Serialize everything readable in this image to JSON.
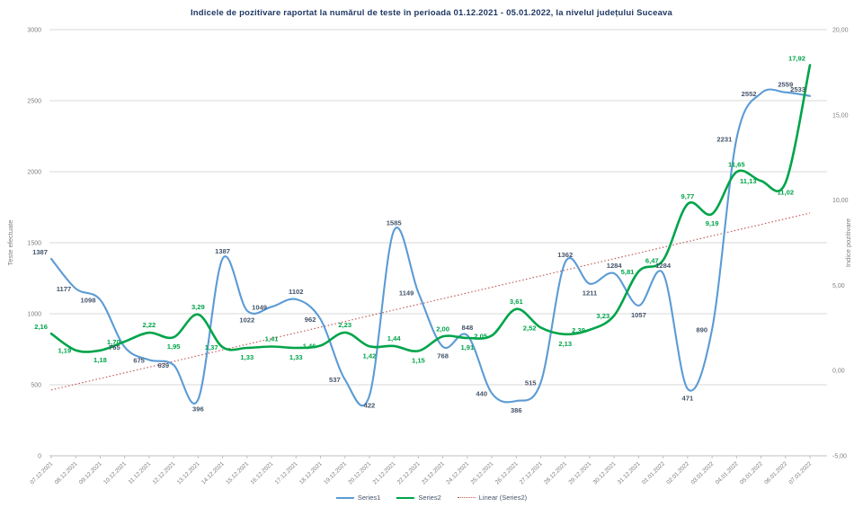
{
  "title": "Indicele de pozitivare raportat la numărul de teste în perioada 01.12.2021 - 05.01.2022, la nivelul județului Suceava",
  "legend": [
    "Series1",
    "Series2",
    "Linear (Series2)"
  ],
  "colors": {
    "title": "#1F3864",
    "series1_line": "#5B9BD5",
    "series1_label": "#44546A",
    "series2_line": "#00A44A",
    "series2_label": "#00A44A",
    "trendline": "#C0504D",
    "gridline": "#D9D9D9",
    "axis_text": "#808080",
    "legend_text": "#44546A"
  },
  "chart_data": {
    "type": "line",
    "title": "Indicele de pozitivare raportat la numărul de teste în perioada 01.12.2021 - 05.01.2022, la nivelul județului Suceava",
    "categories": [
      "07.12.2021",
      "08.12.2021",
      "09.12.2021",
      "10.12.2021",
      "11.12.2021",
      "12.12.2021",
      "13.12.2021",
      "14.12.2021",
      "15.12.2021",
      "16.12.2021",
      "17.12.2021",
      "18.12.2021",
      "19.12.2021",
      "20.12.2021",
      "21.12.2021",
      "22.12.2021",
      "23.12.2021",
      "24.12.2021",
      "25.12.2021",
      "26.12.2021",
      "27.12.2021",
      "28.12.2021",
      "29.12.2021",
      "30.12.2021",
      "31.12.2021",
      "01.01.2022",
      "02.01.2022",
      "03.01.2022",
      "04.01.2022",
      "05.01.2022",
      "06.01.2022",
      "07.01.2022"
    ],
    "series": [
      {
        "name": "Series1",
        "axis": "left",
        "values": [
          1387,
          1177,
          1098,
          765,
          675,
          639,
          396,
          1387,
          1022,
          1049,
          1102,
          962,
          537,
          422,
          1585,
          1149,
          768,
          848,
          440,
          386,
          515,
          1362,
          1211,
          1284,
          1057,
          1284,
          471,
          890,
          2231,
          2552,
          2559,
          2533
        ]
      },
      {
        "name": "Series2",
        "axis": "right",
        "values": [
          2.16,
          1.19,
          1.18,
          1.7,
          2.22,
          1.95,
          3.29,
          1.37,
          1.33,
          1.41,
          1.33,
          1.46,
          2.23,
          1.42,
          1.44,
          1.15,
          2.0,
          1.91,
          2.05,
          3.61,
          2.52,
          2.13,
          2.39,
          3.23,
          5.81,
          6.47,
          9.77,
          9.19,
          11.65,
          11.13,
          11.02,
          17.92
        ]
      }
    ],
    "trendline": {
      "name": "Linear (Series2)",
      "of": "Series2",
      "style": "dotted"
    },
    "left_axis": {
      "title": "Teste efectuate",
      "min": 0,
      "max": 3000,
      "step": 500
    },
    "right_axis": {
      "title": "Indice pozitivare",
      "min": -5,
      "max": 20,
      "step": 5,
      "decimal_format": "0,00"
    },
    "grid": "horizontal",
    "legend_position": "bottom",
    "smoothed_lines": true
  }
}
